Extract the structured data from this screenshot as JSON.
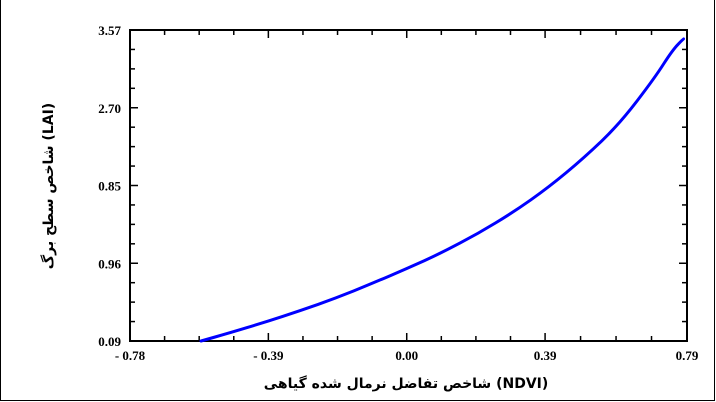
{
  "chart_data": {
    "type": "line",
    "title": "",
    "xlabel": "شاخص تفاضل نرمال شده گیاهی (NDVI)",
    "ylabel": "شاخص سطح برگ (LAI)",
    "xlim": [
      -0.78,
      0.79
    ],
    "x_ticks": [
      {
        "value": -0.78,
        "label": "- 0.78"
      },
      {
        "value": -0.39,
        "label": "- 0.39"
      },
      {
        "value": 0.0,
        "label": "0.00"
      },
      {
        "value": 0.39,
        "label": "0.39"
      },
      {
        "value": 0.79,
        "label": "0.79"
      }
    ],
    "y_ticks": [
      {
        "label": "0.09"
      },
      {
        "label": "0.96"
      },
      {
        "label": "0.85"
      },
      {
        "label": "2.70"
      },
      {
        "label": "3.57"
      }
    ],
    "grid": false,
    "legend": "none",
    "line_color": "#0000ff",
    "series": [
      {
        "x": [
          -0.58,
          -0.5,
          -0.4,
          -0.3,
          -0.2,
          -0.1,
          0.0,
          0.1,
          0.2,
          0.3,
          0.4,
          0.5,
          0.6,
          0.7,
          0.75,
          0.78
        ],
        "y": [
          0.09,
          0.18,
          0.3,
          0.43,
          0.57,
          0.73,
          0.9,
          1.08,
          1.29,
          1.53,
          1.81,
          2.14,
          2.52,
          3.04,
          3.35,
          3.47
        ]
      }
    ]
  }
}
